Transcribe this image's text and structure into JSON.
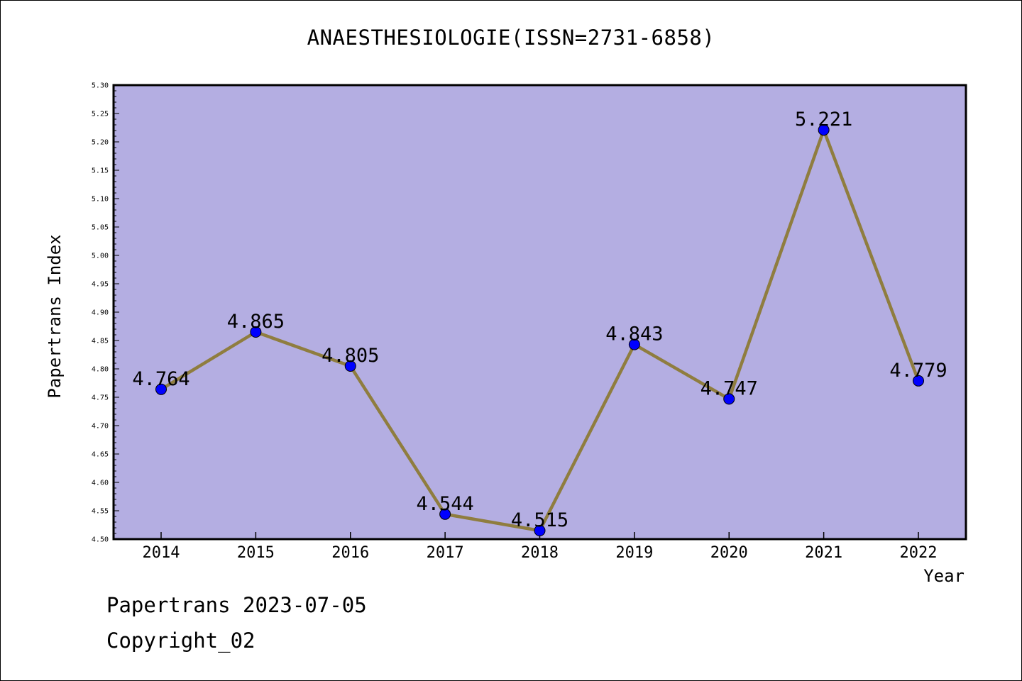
{
  "title": "ANAESTHESIOLOGIE(ISSN=2731-6858)",
  "footer": {
    "line1": "Papertrans 2023-07-05",
    "line2": "Copyright_02"
  },
  "colors": {
    "plot_background": "#b4aee2",
    "line": "#8f7d3f",
    "marker": "#0000ff",
    "border": "#000000"
  },
  "chart_data": {
    "type": "line",
    "title": "ANAESTHESIOLOGIE(ISSN=2731-6858)",
    "xlabel": "Year",
    "ylabel": "Papertrans Index",
    "x": [
      "2014",
      "2015",
      "2016",
      "2017",
      "2018",
      "2019",
      "2020",
      "2021",
      "2022"
    ],
    "series": [
      {
        "values": [
          4.764,
          4.865,
          4.805,
          4.544,
          4.515,
          4.843,
          4.747,
          5.221,
          4.779
        ],
        "labels": [
          "4.764",
          "4.865",
          "4.805",
          "4.544",
          "4.515",
          "4.843",
          "4.747",
          "5.221",
          "4.779"
        ]
      }
    ],
    "ylim": [
      4.5,
      5.3
    ],
    "yticks": [
      "4.50",
      "4.55",
      "4.60",
      "4.65",
      "4.70",
      "4.75",
      "4.80",
      "4.85",
      "4.90",
      "4.95",
      "5.00",
      "5.05",
      "5.10",
      "5.15",
      "5.20",
      "5.25",
      "5.30"
    ],
    "grid": false,
    "legend": "none"
  }
}
